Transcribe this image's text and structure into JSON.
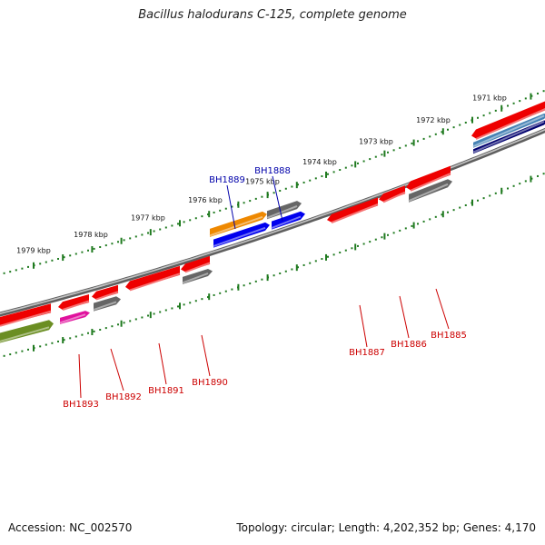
{
  "title": "Bacillus halodurans C-125, complete genome",
  "footer": {
    "accession": "Accession: NC_002570",
    "summary": "Topology: circular; Length: 4,202,352 bp; Genes: 4,170"
  },
  "colors": {
    "backbone": "#8a8a8a",
    "ticks": "#1f7a1f",
    "label_forward": "#0000aa",
    "label_reverse": "#cc0000",
    "gene_red": "#ee0000",
    "gene_grey": "#666666",
    "gene_blue": "#0000ee",
    "gene_orange": "#ee8800",
    "gene_olive": "#6b8e23",
    "gene_magenta": "#e0119d",
    "gene_steel": "#4682b4",
    "gene_navy": "#00006e"
  },
  "scale": {
    "kbp_labels": [
      "1979 kbp",
      "1978 kbp",
      "1977 kbp",
      "1976 kbp",
      "1975 kbp",
      "1974 kbp",
      "1973 kbp",
      "1972 kbp",
      "1971 kbp"
    ]
  },
  "gene_labels": [
    {
      "id": "BH1889",
      "strand": "forward"
    },
    {
      "id": "BH1888",
      "strand": "forward"
    },
    {
      "id": "BH1887",
      "strand": "reverse"
    },
    {
      "id": "BH1886",
      "strand": "reverse"
    },
    {
      "id": "BH1885",
      "strand": "reverse"
    },
    {
      "id": "BH1893",
      "strand": "reverse"
    },
    {
      "id": "BH1892",
      "strand": "reverse"
    },
    {
      "id": "BH1891",
      "strand": "reverse"
    },
    {
      "id": "BH1890",
      "strand": "reverse"
    }
  ],
  "genes": [
    {
      "color": "gene_orange",
      "strand": "forward",
      "track": 0
    },
    {
      "color": "gene_grey",
      "strand": "forward",
      "track": 0
    },
    {
      "color": "gene_blue",
      "strand": "forward",
      "track": 1
    },
    {
      "color": "gene_blue",
      "strand": "forward",
      "track": 1
    },
    {
      "color": "gene_red",
      "strand": "forward",
      "track": 0
    },
    {
      "color": "gene_steel",
      "strand": "forward",
      "track": 1
    },
    {
      "color": "gene_navy",
      "strand": "forward",
      "track": 2
    },
    {
      "color": "gene_red",
      "strand": "reverse",
      "track": 0
    },
    {
      "color": "gene_red",
      "strand": "reverse",
      "track": 0
    },
    {
      "color": "gene_red",
      "strand": "reverse",
      "track": 0
    },
    {
      "color": "gene_grey",
      "strand": "reverse",
      "track": 1
    },
    {
      "color": "gene_red",
      "strand": "reverse",
      "track": 0
    },
    {
      "color": "gene_red",
      "strand": "reverse",
      "track": 0
    },
    {
      "color": "gene_red",
      "strand": "reverse",
      "track": 0
    },
    {
      "color": "gene_red",
      "strand": "reverse",
      "track": 0
    },
    {
      "color": "gene_red",
      "strand": "reverse",
      "track": 0
    },
    {
      "color": "gene_grey",
      "strand": "reverse",
      "track": 1
    },
    {
      "color": "gene_magenta",
      "strand": "reverse",
      "track": 1
    },
    {
      "color": "gene_grey",
      "strand": "reverse",
      "track": 1
    },
    {
      "color": "gene_olive",
      "strand": "reverse",
      "track": 1
    }
  ]
}
